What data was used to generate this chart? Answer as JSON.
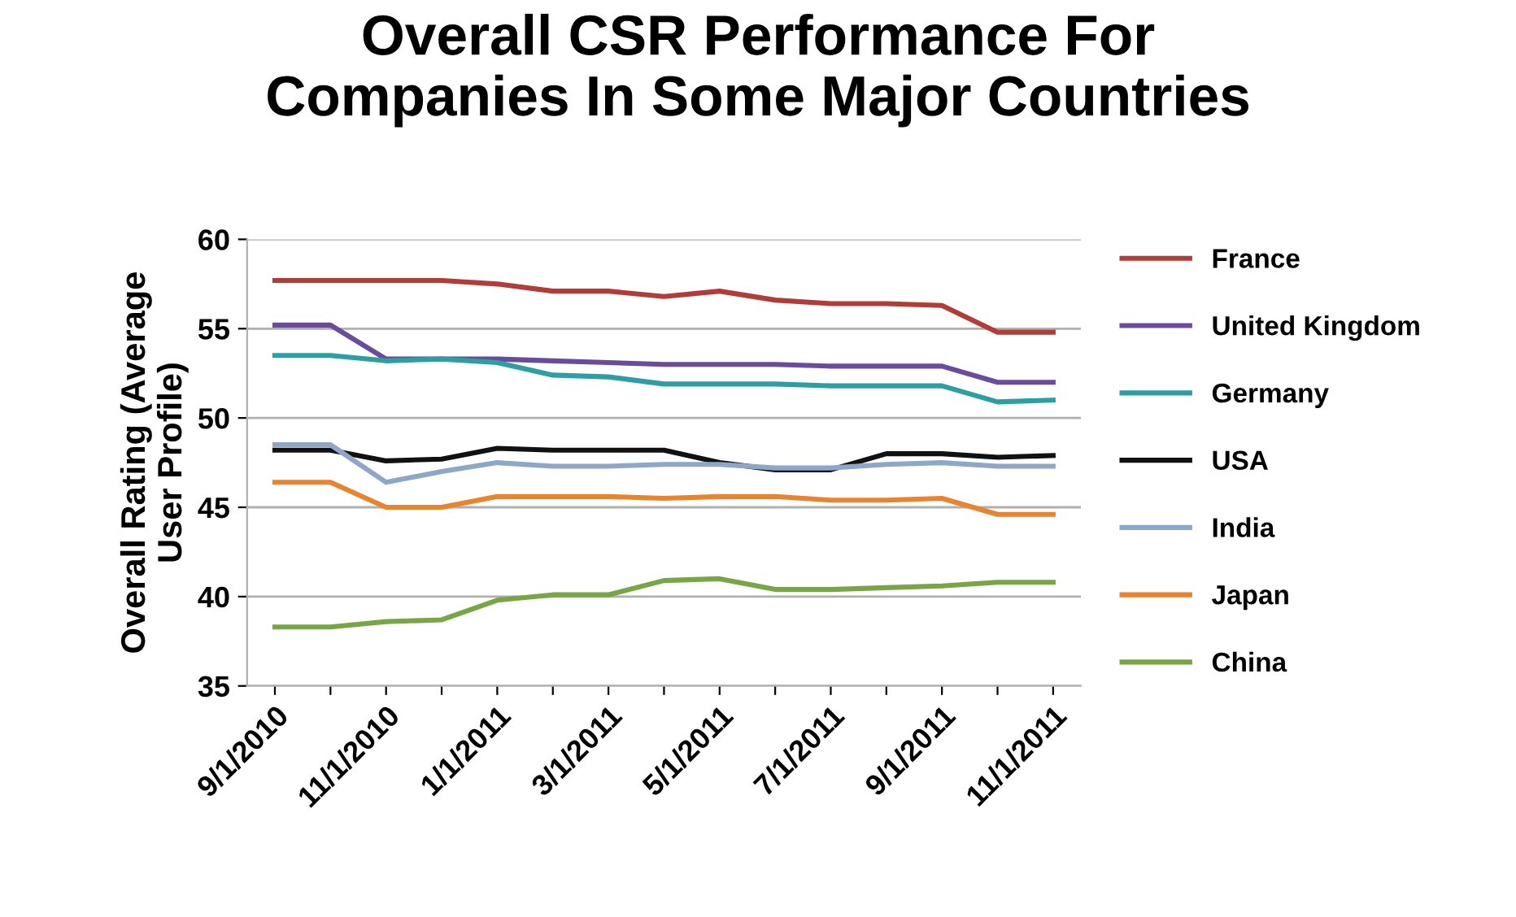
{
  "chart_data": {
    "type": "line",
    "title": "Overall CSR Performance For\nCompanies In Some Major Countries",
    "ylabel": "Overall Rating (Average\nUser Profile)",
    "categories": [
      "9/1/2010",
      null,
      "11/1/2010",
      null,
      "1/1/2011",
      null,
      "3/1/2011",
      null,
      "5/1/2011",
      null,
      "7/1/2011",
      null,
      "9/1/2011",
      null,
      "11/1/2011"
    ],
    "ylim": [
      35,
      60
    ],
    "yticks": [
      35,
      40,
      45,
      50,
      55,
      60
    ],
    "grid": "y",
    "legend": "right",
    "marker": "none",
    "line_style": "solid",
    "series": [
      {
        "name": "France",
        "color": "#b13c3a",
        "values": [
          57.7,
          57.7,
          57.7,
          57.7,
          57.5,
          57.1,
          57.1,
          56.8,
          57.1,
          56.6,
          56.4,
          56.4,
          56.3,
          54.8,
          54.8
        ]
      },
      {
        "name": "United Kingdom",
        "color": "#6a4c9c",
        "values": [
          55.2,
          55.2,
          53.3,
          53.3,
          53.3,
          53.2,
          53.1,
          53.0,
          53.0,
          53.0,
          52.9,
          52.9,
          52.9,
          52.0,
          52.0
        ]
      },
      {
        "name": "Germany",
        "color": "#2e9ea5",
        "values": [
          53.5,
          53.5,
          53.2,
          53.3,
          53.1,
          52.4,
          52.3,
          51.9,
          51.9,
          51.9,
          51.8,
          51.8,
          51.8,
          50.9,
          51.0
        ]
      },
      {
        "name": "USA",
        "color": "#111111",
        "values": [
          48.2,
          48.2,
          47.6,
          47.7,
          48.3,
          48.2,
          48.2,
          48.2,
          47.5,
          47.1,
          47.1,
          48.0,
          48.0,
          47.8,
          47.9
        ]
      },
      {
        "name": "India",
        "color": "#8ea7c8",
        "values": [
          48.5,
          48.5,
          46.4,
          47.0,
          47.5,
          47.3,
          47.3,
          47.4,
          47.4,
          47.2,
          47.2,
          47.4,
          47.5,
          47.3,
          47.3
        ]
      },
      {
        "name": "Japan",
        "color": "#e8832f",
        "values": [
          46.4,
          46.4,
          45.0,
          45.0,
          45.6,
          45.6,
          45.6,
          45.5,
          45.6,
          45.6,
          45.4,
          45.4,
          45.5,
          44.6,
          44.6
        ]
      },
      {
        "name": "China",
        "color": "#78a646",
        "values": [
          38.3,
          38.3,
          38.6,
          38.7,
          39.8,
          40.1,
          40.1,
          40.9,
          41.0,
          40.4,
          40.4,
          40.5,
          40.6,
          40.8,
          40.8
        ]
      }
    ]
  }
}
